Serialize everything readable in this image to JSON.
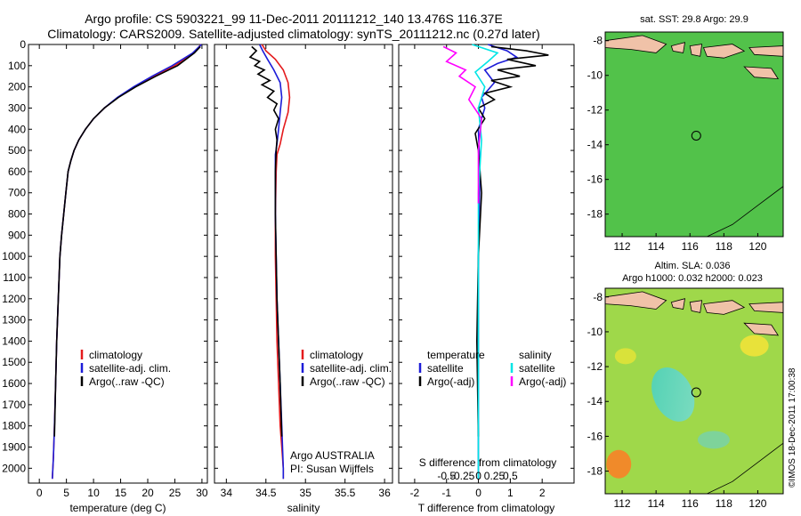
{
  "figure": {
    "title_line1": "Argo profile: CS 5903221_99 11-Dec-2011 20111212_140 13.476S 116.37E",
    "title_line2": "Climatology: CARS2009. Satellite-adjusted climatology: synTS_20111212.nc (0.27d later)",
    "credit": "©IMOS 18-Dec-2011 17:00:38",
    "colors": {
      "climatology": "#e41a1c",
      "satellite": "#1c1cd8",
      "argo": "#000000",
      "salinity_satellite": "#00e5e5",
      "salinity_argo": "#ff00ff"
    }
  },
  "chart_data": [
    {
      "type": "line",
      "name": "temperature",
      "xlabel": "temperature (deg C)",
      "xlim": [
        -2,
        31
      ],
      "ylim": [
        2070,
        0
      ],
      "xticks": [
        0,
        5,
        10,
        15,
        20,
        25,
        30
      ],
      "xticklabels": [
        "0",
        "5",
        "10",
        "15",
        "20",
        "25",
        "30"
      ],
      "yticks": [
        0,
        100,
        200,
        300,
        400,
        500,
        600,
        700,
        800,
        900,
        1000,
        1100,
        1200,
        1300,
        1400,
        1500,
        1600,
        1700,
        1800,
        1900,
        2000
      ],
      "yticklabels": [
        "0",
        "100",
        "200",
        "300",
        "400",
        "500",
        "600",
        "700",
        "800",
        "900",
        "1000",
        "1100",
        "1200",
        "1300",
        "1400",
        "1500",
        "1600",
        "1700",
        "1800",
        "1900",
        "2000"
      ],
      "legend": [
        "climatology",
        "satellite-adj. clim.",
        "Argo(..raw -QC)"
      ],
      "series": [
        {
          "name": "climatology",
          "color": "#e41a1c",
          "x": [
            29.8,
            28.5,
            25.0,
            21.0,
            17.5,
            14.5,
            12.0,
            10.0,
            8.5,
            7.3,
            6.4,
            5.8,
            5.3,
            4.9,
            4.5,
            4.1,
            3.8,
            3.5,
            3.2,
            3.0,
            2.8,
            2.6,
            2.4
          ],
          "y": [
            0,
            40,
            100,
            150,
            200,
            250,
            300,
            350,
            400,
            450,
            500,
            550,
            600,
            700,
            800,
            900,
            1000,
            1200,
            1400,
            1600,
            1800,
            1950,
            2050
          ]
        },
        {
          "name": "satellite-adj. clim.",
          "color": "#1c1cd8",
          "x": [
            29.9,
            28.3,
            24.5,
            20.8,
            17.4,
            14.4,
            12.0,
            10.0,
            8.5,
            7.3,
            6.4,
            5.8,
            5.3,
            4.9,
            4.5,
            4.1,
            3.8,
            3.5,
            3.2,
            3.0,
            2.8,
            2.6,
            2.4
          ],
          "y": [
            0,
            40,
            100,
            150,
            200,
            250,
            300,
            350,
            400,
            450,
            500,
            550,
            600,
            700,
            800,
            900,
            1000,
            1200,
            1400,
            1600,
            1800,
            1950,
            2050
          ]
        },
        {
          "name": "Argo(..raw -QC)",
          "color": "#000000",
          "x": [
            29.7,
            28.6,
            25.5,
            21.5,
            17.8,
            14.6,
            12.0,
            10.0,
            8.5,
            7.3,
            6.4,
            5.8,
            5.3,
            4.9,
            4.5,
            4.1,
            3.8,
            3.5,
            3.2,
            3.0,
            2.8
          ],
          "y": [
            10,
            40,
            100,
            150,
            200,
            250,
            300,
            350,
            400,
            450,
            500,
            550,
            600,
            700,
            800,
            900,
            1000,
            1200,
            1400,
            1600,
            1850
          ]
        }
      ]
    },
    {
      "type": "line",
      "name": "salinity",
      "xlabel": "salinity",
      "xlim": [
        33.85,
        36.1
      ],
      "ylim": [
        2070,
        0
      ],
      "xticks": [
        34,
        34.5,
        35,
        35.5,
        36
      ],
      "xticklabels": [
        "34",
        "34.5",
        "35",
        "35.5",
        "36"
      ],
      "legend": [
        "climatology",
        "satellite-adj. clim.",
        "Argo(..raw -QC)"
      ],
      "annotation": [
        "Argo AUSTRALIA",
        "PI: Susan Wijffels"
      ],
      "series": [
        {
          "name": "climatology",
          "color": "#e41a1c",
          "x": [
            34.45,
            34.5,
            34.62,
            34.72,
            34.78,
            34.8,
            34.78,
            34.72,
            34.68,
            34.64,
            34.63,
            34.62,
            34.62,
            34.63,
            34.64,
            34.66,
            34.68,
            34.7,
            34.72,
            34.72
          ],
          "y": [
            0,
            30,
            70,
            120,
            180,
            250,
            320,
            400,
            470,
            520,
            600,
            800,
            1000,
            1200,
            1400,
            1600,
            1800,
            1900,
            2000,
            2050
          ]
        },
        {
          "name": "satellite-adj. clim.",
          "color": "#1c1cd8",
          "x": [
            34.42,
            34.46,
            34.52,
            34.6,
            34.68,
            34.7,
            34.68,
            34.66,
            34.64,
            34.62,
            34.62,
            34.62,
            34.63,
            34.64,
            34.66,
            34.68,
            34.7,
            34.72,
            34.72
          ],
          "y": [
            0,
            30,
            70,
            120,
            180,
            250,
            320,
            400,
            470,
            520,
            600,
            800,
            1000,
            1200,
            1400,
            1600,
            1800,
            2000,
            2050
          ]
        },
        {
          "name": "Argo(..raw -QC)",
          "color": "#000000",
          "x": [
            34.32,
            34.38,
            34.3,
            34.42,
            34.36,
            34.48,
            34.4,
            34.55,
            34.45,
            34.6,
            34.52,
            34.64,
            34.6,
            34.66,
            34.62,
            34.64,
            34.63,
            34.62,
            34.62,
            34.63,
            34.64,
            34.66,
            34.68,
            34.7
          ],
          "y": [
            10,
            30,
            60,
            80,
            100,
            120,
            140,
            170,
            190,
            220,
            250,
            280,
            310,
            350,
            400,
            450,
            500,
            600,
            800,
            1000,
            1200,
            1400,
            1600,
            1850
          ]
        }
      ]
    },
    {
      "type": "line",
      "name": "difference",
      "xlabel": "T difference from climatology",
      "xlabel_top": "S difference from climatology",
      "xlim": [
        -2.5,
        3.0
      ],
      "ylim": [
        2070,
        0
      ],
      "xticks": [
        -2,
        -1,
        0,
        1,
        2
      ],
      "xticklabels": [
        "-2",
        "-1",
        "0",
        "1",
        "2"
      ],
      "sticks": [
        -1,
        -0.5,
        0,
        0.5,
        1.0
      ],
      "sticklabels": [
        "-0.5",
        "-0.25",
        "0",
        "0.25",
        "0.5"
      ],
      "legend_temperature": [
        "temperature",
        "satellite",
        "Argo(-adj)"
      ],
      "legend_salinity": [
        "salinity",
        "satellite",
        "Argo(-adj)"
      ],
      "series": [
        {
          "name": "T satellite",
          "color": "#1c1cd8",
          "x": [
            0.3,
            0.9,
            1.2,
            0.6,
            0.2,
            0.5,
            0.1,
            0.2,
            0.0,
            0.05,
            0.0,
            0.0,
            0.0
          ],
          "y": [
            0,
            30,
            60,
            90,
            120,
            180,
            250,
            300,
            400,
            600,
            1000,
            1500,
            2050
          ]
        },
        {
          "name": "T Argo",
          "color": "#000000",
          "x": [
            0.4,
            1.5,
            2.2,
            0.9,
            1.8,
            0.6,
            1.3,
            0.4,
            1.0,
            0.2,
            0.5,
            0.0,
            0.2,
            -0.1,
            0.0,
            0.1,
            0.0,
            -0.05,
            0.0
          ],
          "y": [
            10,
            30,
            50,
            70,
            100,
            120,
            150,
            170,
            200,
            230,
            260,
            300,
            350,
            420,
            500,
            700,
            1000,
            1400,
            1850
          ]
        },
        {
          "name": "S satellite",
          "color": "#00e5e5",
          "x": [
            -0.2,
            0.6,
            0.3,
            -0.1,
            0.2,
            0.0,
            0.1,
            0.0,
            0.0,
            0.0
          ],
          "y": [
            0,
            40,
            80,
            130,
            200,
            300,
            450,
            700,
            1200,
            2050
          ]
        },
        {
          "name": "S Argo",
          "color": "#ff00ff",
          "x": [
            -1.1,
            -0.7,
            -1.0,
            -0.4,
            -0.6,
            -0.1,
            -0.3,
            0.1,
            0.0,
            0.0
          ],
          "y": [
            10,
            40,
            80,
            120,
            150,
            200,
            260,
            350,
            500,
            750
          ]
        }
      ]
    },
    {
      "type": "heatmap",
      "name": "sst_map",
      "title": "sat. SST: 29.8  Argo: 29.9",
      "xlim": [
        111,
        121.5
      ],
      "ylim": [
        -19.3,
        -7.5
      ],
      "xticks": [
        112,
        114,
        116,
        118,
        120
      ],
      "xticklabels": [
        "112",
        "114",
        "116",
        "118",
        "120"
      ],
      "yticks": [
        -8,
        -10,
        -12,
        -14,
        -16,
        -18
      ],
      "yticklabels": [
        "-8",
        "-10",
        "-12",
        "-14",
        "-16",
        "-18"
      ],
      "marker": {
        "lon": 116.37,
        "lat": -13.476
      }
    },
    {
      "type": "heatmap",
      "name": "sla_map",
      "title": "Altim. SLA: 0.036",
      "subtitle": "Argo h1000: 0.032  h2000: 0.023",
      "xlim": [
        111,
        121.5
      ],
      "ylim": [
        -19.3,
        -7.5
      ],
      "xticks": [
        112,
        114,
        116,
        118,
        120
      ],
      "xticklabels": [
        "112",
        "114",
        "116",
        "118",
        "120"
      ],
      "yticks": [
        -8,
        -10,
        -12,
        -14,
        -16,
        -18
      ],
      "yticklabels": [
        "-8",
        "-10",
        "-12",
        "-14",
        "-16",
        "-18"
      ],
      "marker": {
        "lon": 116.37,
        "lat": -13.476
      }
    }
  ]
}
